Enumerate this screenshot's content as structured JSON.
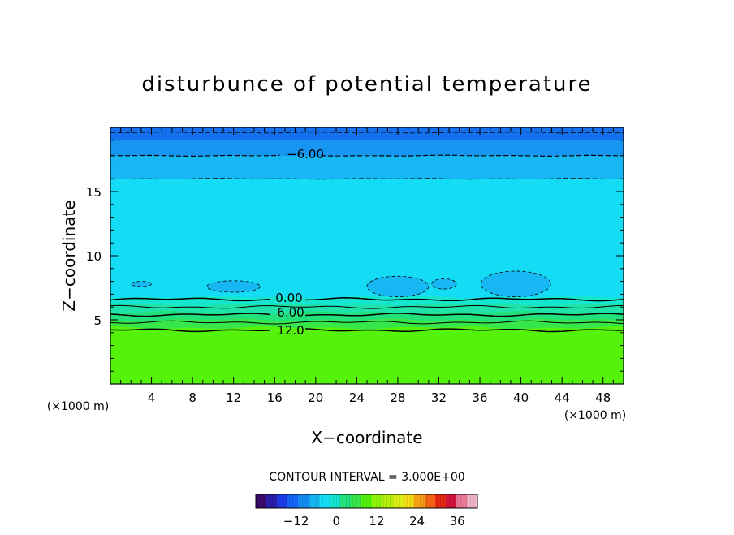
{
  "chart_data": {
    "type": "heatmap",
    "title": "disturbunce of potential temperature",
    "xlabel": "X−coordinate",
    "ylabel": "Z−coordinate",
    "x_unit_left": "(×1000 m)",
    "x_unit_right": "(×1000 m)",
    "xlim": [
      0,
      50
    ],
    "ylim": [
      0,
      20
    ],
    "x_ticks": [
      "4",
      "8",
      "12",
      "16",
      "20",
      "24",
      "28",
      "32",
      "36",
      "40",
      "44",
      "48"
    ],
    "y_ticks": [
      "5",
      "10",
      "15"
    ],
    "contour_interval_text": "CONTOUR INTERVAL = 3.000E+00",
    "contour_labels": [
      "−6.00",
      "0.00",
      "6.00",
      "12.0"
    ],
    "contour_levels": [
      -6,
      -3,
      0,
      3,
      6,
      9,
      12
    ],
    "layers": [
      {
        "z_from": 0,
        "z_to": 4.4,
        "value": 15,
        "color": "#55f20b"
      },
      {
        "z_from": 4.4,
        "z_to": 5.0,
        "value": 12,
        "color": "#37e649"
      },
      {
        "z_from": 5.0,
        "z_to": 5.6,
        "value": 9,
        "color": "#22e07a"
      },
      {
        "z_from": 5.6,
        "z_to": 6.2,
        "value": 6,
        "color": "#1fe3a8"
      },
      {
        "z_from": 6.2,
        "z_to": 6.8,
        "value": 3,
        "color": "#16e6cf"
      },
      {
        "z_from": 6.8,
        "z_to": 16.0,
        "value": -1.5,
        "color": "#14dcf5"
      },
      {
        "z_from": 16.0,
        "z_to": 17.8,
        "value": -4.5,
        "color": "#16b7f2"
      },
      {
        "z_from": 17.8,
        "z_to": 19.0,
        "value": -7.5,
        "color": "#1696f0"
      },
      {
        "z_from": 19.0,
        "z_to": 20.0,
        "value": -10.5,
        "color": "#1470ec"
      }
    ],
    "colorbar": {
      "ticks": [
        "−12",
        "0",
        "12",
        "24",
        "36"
      ],
      "tick_values": [
        -12,
        0,
        12,
        24,
        36
      ],
      "range": [
        -24,
        42
      ],
      "colors": [
        "#3c0a6e",
        "#2a1ea8",
        "#1e3ce6",
        "#1464f5",
        "#148cf5",
        "#14b4f0",
        "#14dcf5",
        "#16e6cf",
        "#22e07a",
        "#37e649",
        "#55f20b",
        "#8cf50a",
        "#b4f00a",
        "#dcf014",
        "#f5dc14",
        "#f5a014",
        "#f56414",
        "#e62814",
        "#d2143c",
        "#e67896",
        "#f0b4c8"
      ]
    }
  }
}
